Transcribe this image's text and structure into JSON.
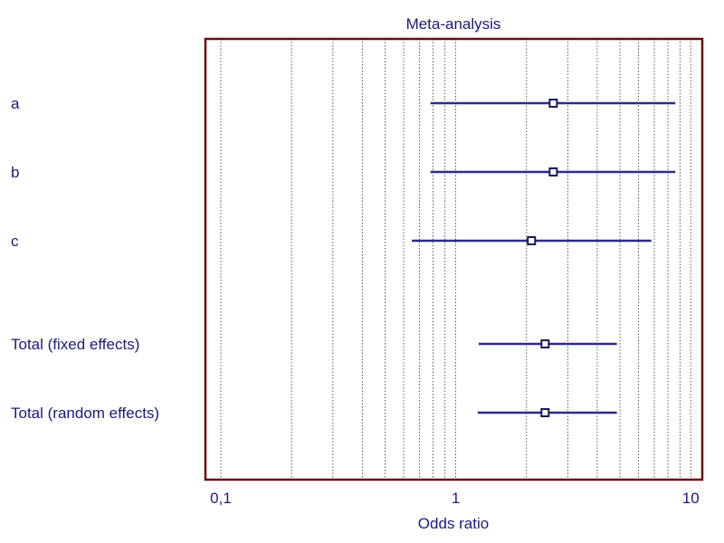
{
  "chart_data": {
    "type": "scatter",
    "title": "Meta-analysis",
    "xlabel": "Odds ratio",
    "ylabel": "",
    "x_scale": "log",
    "xlim": [
      0.086,
      11.2
    ],
    "x_ticks": [
      {
        "value": 0.1,
        "label": "0,1"
      },
      {
        "value": 1,
        "label": "1"
      },
      {
        "value": 10,
        "label": "10"
      }
    ],
    "grid": true,
    "legend": "none",
    "studies": [
      {
        "label": "a",
        "estimate": 2.6,
        "ci_low": 0.78,
        "ci_high": 8.6
      },
      {
        "label": "b",
        "estimate": 2.6,
        "ci_low": 0.78,
        "ci_high": 8.6
      },
      {
        "label": "c",
        "estimate": 2.1,
        "ci_low": 0.65,
        "ci_high": 6.8
      },
      {
        "label": "Total (fixed effects)",
        "estimate": 2.4,
        "ci_low": 1.25,
        "ci_high": 4.85
      },
      {
        "label": "Total (random effects)",
        "estimate": 2.4,
        "ci_low": 1.24,
        "ci_high": 4.85
      }
    ],
    "colors": {
      "frame": "#6b0a0a",
      "series": "#2b2b8a",
      "text": "#1a1a7a",
      "grid": "#333333"
    }
  }
}
